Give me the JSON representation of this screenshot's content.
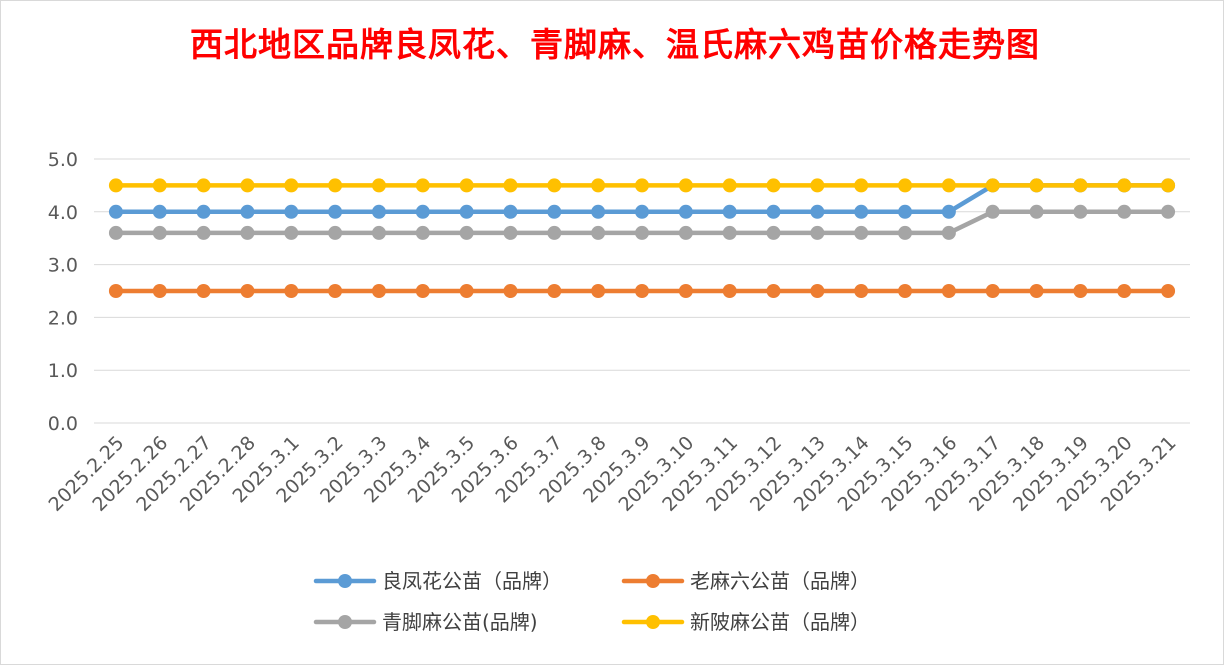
{
  "chart_data": {
    "type": "line",
    "title": "西北地区品牌良凤花、青脚麻、温氏麻六鸡苗价格走势图",
    "title_color": "#ff0000",
    "xlabel": "",
    "ylabel": "",
    "ylim": [
      0,
      5
    ],
    "y_ticks": [
      "0.0",
      "1.0",
      "2.0",
      "3.0",
      "4.0",
      "5.0"
    ],
    "grid": true,
    "legend_position": "bottom",
    "categories": [
      "2025.2.25",
      "2025.2.26",
      "2025.2.27",
      "2025.2.28",
      "2025.3.1",
      "2025.3.2",
      "2025.3.3",
      "2025.3.4",
      "2025.3.5",
      "2025.3.6",
      "2025.3.7",
      "2025.3.8",
      "2025.3.9",
      "2025.3.10",
      "2025.3.11",
      "2025.3.12",
      "2025.3.13",
      "2025.3.14",
      "2025.3.15",
      "2025.3.16",
      "2025.3.17",
      "2025.3.18",
      "2025.3.19",
      "2025.3.20",
      "2025.3.21"
    ],
    "series": [
      {
        "name": "良凤花公苗（品牌）",
        "color": "#5b9bd5",
        "values": [
          4.0,
          4.0,
          4.0,
          4.0,
          4.0,
          4.0,
          4.0,
          4.0,
          4.0,
          4.0,
          4.0,
          4.0,
          4.0,
          4.0,
          4.0,
          4.0,
          4.0,
          4.0,
          4.0,
          4.0,
          4.5,
          4.5,
          4.5,
          4.5,
          4.5
        ]
      },
      {
        "name": "老麻六公苗（品牌）",
        "color": "#ed7d31",
        "values": [
          2.5,
          2.5,
          2.5,
          2.5,
          2.5,
          2.5,
          2.5,
          2.5,
          2.5,
          2.5,
          2.5,
          2.5,
          2.5,
          2.5,
          2.5,
          2.5,
          2.5,
          2.5,
          2.5,
          2.5,
          2.5,
          2.5,
          2.5,
          2.5,
          2.5
        ]
      },
      {
        "name": "青脚麻公苗(品牌)",
        "color": "#a5a5a5",
        "values": [
          3.6,
          3.6,
          3.6,
          3.6,
          3.6,
          3.6,
          3.6,
          3.6,
          3.6,
          3.6,
          3.6,
          3.6,
          3.6,
          3.6,
          3.6,
          3.6,
          3.6,
          3.6,
          3.6,
          3.6,
          4.0,
          4.0,
          4.0,
          4.0,
          4.0
        ]
      },
      {
        "name": "新陂麻公苗（品牌）",
        "color": "#ffc000",
        "values": [
          4.5,
          4.5,
          4.5,
          4.5,
          4.5,
          4.5,
          4.5,
          4.5,
          4.5,
          4.5,
          4.5,
          4.5,
          4.5,
          4.5,
          4.5,
          4.5,
          4.5,
          4.5,
          4.5,
          4.5,
          4.5,
          4.5,
          4.5,
          4.5,
          4.5
        ]
      }
    ],
    "draw_order": [
      1,
      2,
      0,
      3
    ]
  }
}
